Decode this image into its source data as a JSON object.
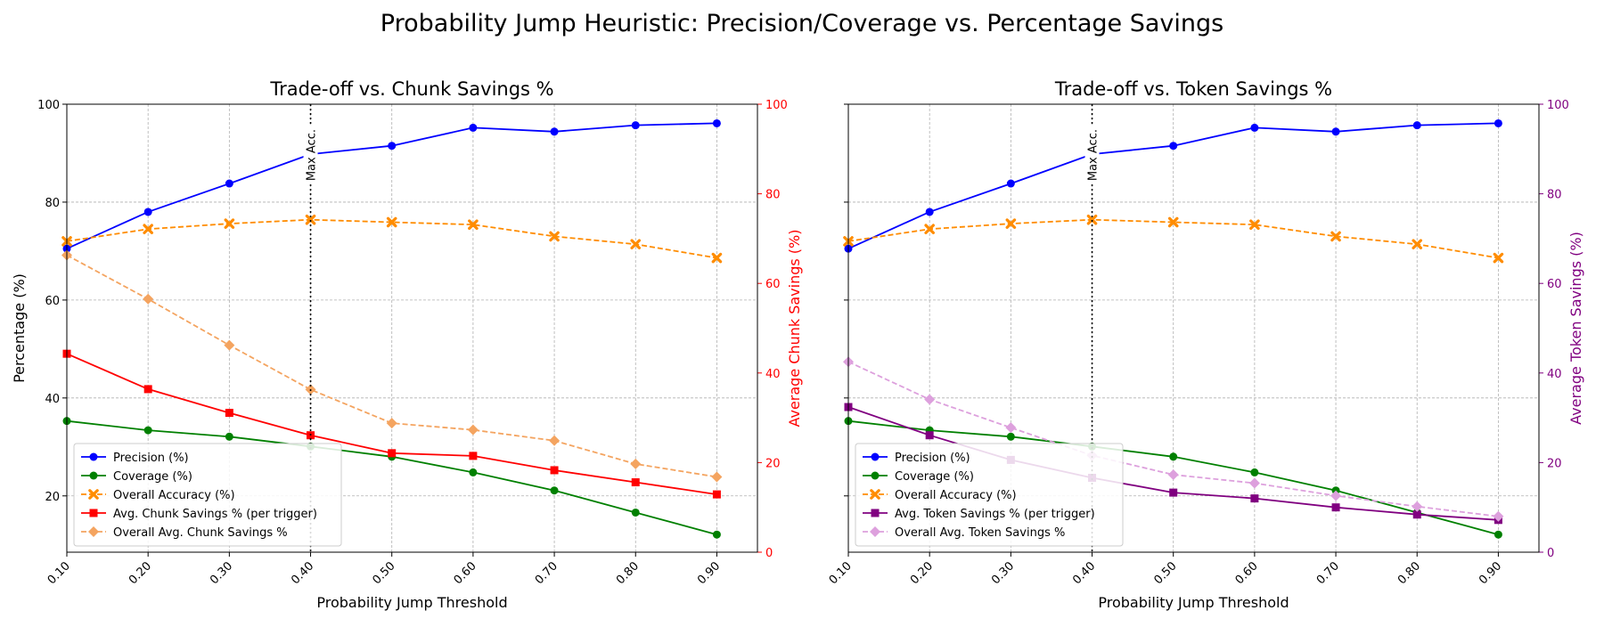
{
  "suptitle": "Probability Jump Heuristic: Precision/Coverage vs. Percentage Savings",
  "chart_data": [
    {
      "type": "line",
      "title": "Trade-off vs. Chunk Savings %",
      "xlabel": "Probability Jump Threshold",
      "ylabel": "Percentage (%)",
      "y2label": "Average Chunk Savings (%)",
      "y2_color": "#ff0000",
      "x": [
        0.1,
        0.2,
        0.3,
        0.4,
        0.5,
        0.6,
        0.7,
        0.8,
        0.9
      ],
      "x_ticks": [
        "0.10",
        "0.20",
        "0.30",
        "0.40",
        "0.50",
        "0.60",
        "0.70",
        "0.80",
        "0.90"
      ],
      "xlim": [
        0.1,
        0.95
      ],
      "ylim": [
        8.5,
        100
      ],
      "y_ticks": [
        20,
        40,
        60,
        80,
        100
      ],
      "y2lim": [
        0,
        100
      ],
      "y2_ticks": [
        0,
        20,
        40,
        60,
        80,
        100
      ],
      "grid": true,
      "legend_position": "lower-left",
      "annotation": {
        "x": 0.4,
        "text": "Max Acc."
      },
      "series": [
        {
          "name": "Precision (%)",
          "axis": "left",
          "color": "#0000ff",
          "marker": "circle",
          "dashed": false,
          "values": [
            70.5,
            78.0,
            83.8,
            89.8,
            91.5,
            95.2,
            94.4,
            95.7,
            96.1
          ]
        },
        {
          "name": "Coverage (%)",
          "axis": "left",
          "color": "#008000",
          "marker": "circle",
          "dashed": false,
          "values": [
            35.3,
            33.4,
            32.1,
            30.1,
            28.0,
            24.8,
            21.1,
            16.6,
            12.1
          ]
        },
        {
          "name": "Overall Accuracy (%)",
          "axis": "left",
          "color": "#ff8c00",
          "marker": "x",
          "dashed": true,
          "values": [
            72.0,
            74.5,
            75.6,
            76.4,
            75.9,
            75.4,
            73.0,
            71.4,
            68.6
          ]
        },
        {
          "name": "Avg. Chunk Savings % (per trigger)",
          "axis": "right",
          "color": "#ff0000",
          "marker": "square",
          "dashed": false,
          "values": [
            44.3,
            36.4,
            31.1,
            26.1,
            22.1,
            21.5,
            18.3,
            15.6,
            12.9
          ]
        },
        {
          "name": "Overall Avg. Chunk Savings %",
          "axis": "right",
          "color": "#f4a460",
          "marker": "diamond",
          "dashed": true,
          "values": [
            66.3,
            56.5,
            46.2,
            36.3,
            28.8,
            27.3,
            24.9,
            19.7,
            16.8
          ]
        }
      ]
    },
    {
      "type": "line",
      "title": "Trade-off vs. Token Savings %",
      "xlabel": "Probability Jump Threshold",
      "ylabel": "",
      "y2label": "Average Token Savings (%)",
      "y2_color": "#800080",
      "x": [
        0.1,
        0.2,
        0.3,
        0.4,
        0.5,
        0.6,
        0.7,
        0.8,
        0.9
      ],
      "x_ticks": [
        "0.10",
        "0.20",
        "0.30",
        "0.40",
        "0.50",
        "0.60",
        "0.70",
        "0.80",
        "0.90"
      ],
      "xlim": [
        0.1,
        0.95
      ],
      "ylim": [
        8.5,
        100
      ],
      "y_ticks": [
        20,
        40,
        60,
        80,
        100
      ],
      "y2lim": [
        0,
        100
      ],
      "y2_ticks": [
        0,
        20,
        40,
        60,
        80,
        100
      ],
      "grid": true,
      "legend_position": "lower-left",
      "annotation": {
        "x": 0.4,
        "text": "Max Acc."
      },
      "series": [
        {
          "name": "Precision (%)",
          "axis": "left",
          "color": "#0000ff",
          "marker": "circle",
          "dashed": false,
          "values": [
            70.5,
            78.0,
            83.8,
            89.8,
            91.5,
            95.2,
            94.4,
            95.7,
            96.1
          ]
        },
        {
          "name": "Coverage (%)",
          "axis": "left",
          "color": "#008000",
          "marker": "circle",
          "dashed": false,
          "values": [
            35.3,
            33.4,
            32.1,
            30.1,
            28.0,
            24.8,
            21.1,
            16.6,
            12.1
          ]
        },
        {
          "name": "Overall Accuracy (%)",
          "axis": "left",
          "color": "#ff8c00",
          "marker": "x",
          "dashed": true,
          "values": [
            72.0,
            74.5,
            75.6,
            76.4,
            75.9,
            75.4,
            73.0,
            71.4,
            68.6
          ]
        },
        {
          "name": "Avg. Token Savings % (per trigger)",
          "axis": "right",
          "color": "#800080",
          "marker": "square",
          "dashed": false,
          "values": [
            32.4,
            26.1,
            20.6,
            16.6,
            13.3,
            12.0,
            10.0,
            8.4,
            7.2
          ]
        },
        {
          "name": "Overall Avg. Token Savings %",
          "axis": "right",
          "color": "#dda0dd",
          "marker": "diamond",
          "dashed": true,
          "values": [
            42.5,
            34.1,
            27.8,
            21.6,
            17.3,
            15.4,
            12.6,
            10.2,
            8.0
          ]
        }
      ]
    }
  ]
}
